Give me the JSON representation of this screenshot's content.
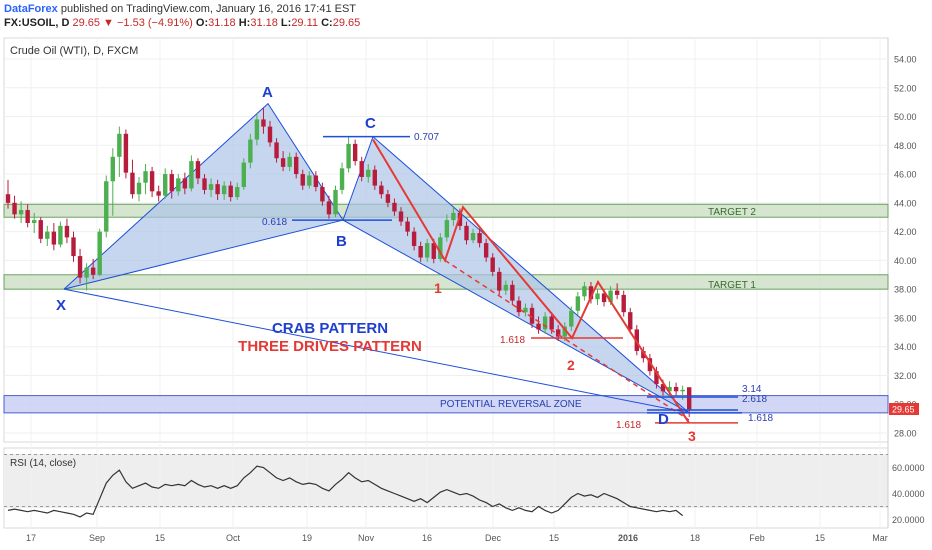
{
  "header": {
    "publisher": "DataForex",
    "published_text": "published on TradingView.com, January 16, 2016 17:41 EST",
    "symbol": "FX:USOIL, D",
    "last": "29.65",
    "change": "▼ −1.53 (−4.91%)",
    "o_label": "O:",
    "o": "31.18",
    "h_label": "H:",
    "h": "31.18",
    "l_label": "L:",
    "l": "29.11",
    "c_label": "C:",
    "c": "29.65"
  },
  "chart_title": "Crude Oil (WTI), D, FXCM",
  "price_labels": [
    "54.00",
    "52.00",
    "50.00",
    "48.00",
    "46.00",
    "44.00",
    "42.00",
    "40.00",
    "38.00",
    "36.00",
    "34.00",
    "32.00",
    "30.00",
    "28.00"
  ],
  "price_ticks": [
    54,
    52,
    50,
    48,
    46,
    44,
    42,
    40,
    38,
    36,
    34,
    32,
    30,
    28
  ],
  "last_price_tag": "29.65",
  "rsi_title": "RSI (14, close)",
  "rsi_labels": [
    "60.0000",
    "40.0000",
    "20.0000"
  ],
  "rsi_ticks": [
    60,
    40,
    20
  ],
  "time_labels": [
    "17",
    "Sep",
    "15",
    "Oct",
    "19",
    "Nov",
    "16",
    "Dec",
    "15",
    "2016",
    "18",
    "Feb",
    "15",
    "Mar"
  ],
  "pattern_text": {
    "crab": "CRAB PATTERN",
    "three_drives": "THREE DRIVES PATTERN",
    "prz": "POTENTIAL REVERSAL ZONE",
    "target1": "TARGET 1",
    "target2": "TARGET 2",
    "fib_0707": "0.707",
    "fib_0618": "0.618",
    "fib_1618_a": "1.618",
    "fib_1618_b": "1.618",
    "fib_1618_c": "1.618",
    "fib_314": "3.14",
    "fib_2618": "2.618",
    "pt_x": "X",
    "pt_a": "A",
    "pt_b": "B",
    "pt_c": "C",
    "pt_d": "D",
    "drive_1": "1",
    "drive_2": "2",
    "drive_3": "3"
  },
  "colors": {
    "bull": "#4caf50",
    "bear": "#b71c3c",
    "pattern_blue": "#1e4fd8",
    "pattern_fill": "#aec4e8",
    "drives_red": "#e53935",
    "target_fill": "#c8dcc0",
    "prz_fill": "#c5cdf2",
    "rsi_line": "#333333"
  },
  "chart_data": {
    "type": "candlestick",
    "title": "Crude Oil (WTI), D, FXCM",
    "ylim": [
      27,
      55
    ],
    "y_ticks": [
      54,
      52,
      50,
      48,
      46,
      44,
      42,
      40,
      38,
      36,
      34,
      32,
      30,
      28
    ],
    "candles": [
      {
        "o": 44.6,
        "h": 45.6,
        "l": 43.6,
        "c": 44.0
      },
      {
        "o": 44.0,
        "h": 44.5,
        "l": 42.9,
        "c": 43.2
      },
      {
        "o": 43.2,
        "h": 44.1,
        "l": 42.6,
        "c": 43.5
      },
      {
        "o": 43.5,
        "h": 43.9,
        "l": 42.3,
        "c": 42.6
      },
      {
        "o": 42.6,
        "h": 43.3,
        "l": 41.9,
        "c": 42.8
      },
      {
        "o": 42.8,
        "h": 43.0,
        "l": 41.2,
        "c": 41.5
      },
      {
        "o": 41.5,
        "h": 42.4,
        "l": 41.0,
        "c": 42.0
      },
      {
        "o": 42.0,
        "h": 42.6,
        "l": 40.7,
        "c": 41.1
      },
      {
        "o": 41.1,
        "h": 42.7,
        "l": 40.9,
        "c": 42.4
      },
      {
        "o": 42.4,
        "h": 42.9,
        "l": 41.2,
        "c": 41.6
      },
      {
        "o": 41.6,
        "h": 42.0,
        "l": 39.9,
        "c": 40.3
      },
      {
        "o": 40.3,
        "h": 40.8,
        "l": 38.4,
        "c": 38.8
      },
      {
        "o": 38.8,
        "h": 39.8,
        "l": 37.9,
        "c": 39.5
      },
      {
        "o": 39.5,
        "h": 40.1,
        "l": 38.7,
        "c": 39.0
      },
      {
        "o": 39.0,
        "h": 42.2,
        "l": 38.9,
        "c": 42.0
      },
      {
        "o": 42.0,
        "h": 45.9,
        "l": 41.6,
        "c": 45.5
      },
      {
        "o": 45.5,
        "h": 47.8,
        "l": 43.1,
        "c": 47.2
      },
      {
        "o": 47.2,
        "h": 49.3,
        "l": 45.8,
        "c": 48.8
      },
      {
        "o": 48.8,
        "h": 49.1,
        "l": 45.7,
        "c": 46.1
      },
      {
        "o": 46.1,
        "h": 47.0,
        "l": 44.3,
        "c": 44.6
      },
      {
        "o": 44.6,
        "h": 45.8,
        "l": 44.1,
        "c": 45.4
      },
      {
        "o": 45.4,
        "h": 46.7,
        "l": 44.6,
        "c": 46.2
      },
      {
        "o": 46.2,
        "h": 46.5,
        "l": 44.4,
        "c": 44.8
      },
      {
        "o": 44.8,
        "h": 45.2,
        "l": 44.1,
        "c": 44.5
      },
      {
        "o": 44.5,
        "h": 46.4,
        "l": 44.3,
        "c": 46.0
      },
      {
        "o": 46.0,
        "h": 46.3,
        "l": 44.3,
        "c": 44.8
      },
      {
        "o": 44.8,
        "h": 46.0,
        "l": 44.5,
        "c": 45.7
      },
      {
        "o": 45.7,
        "h": 46.1,
        "l": 44.6,
        "c": 45.0
      },
      {
        "o": 45.0,
        "h": 47.3,
        "l": 44.8,
        "c": 46.9
      },
      {
        "o": 46.9,
        "h": 47.1,
        "l": 45.3,
        "c": 45.7
      },
      {
        "o": 45.7,
        "h": 46.0,
        "l": 44.6,
        "c": 44.9
      },
      {
        "o": 44.9,
        "h": 45.7,
        "l": 44.4,
        "c": 45.3
      },
      {
        "o": 45.3,
        "h": 45.6,
        "l": 44.2,
        "c": 44.6
      },
      {
        "o": 44.6,
        "h": 45.5,
        "l": 44.2,
        "c": 45.2
      },
      {
        "o": 45.2,
        "h": 45.5,
        "l": 44.1,
        "c": 44.4
      },
      {
        "o": 44.4,
        "h": 45.4,
        "l": 44.2,
        "c": 45.1
      },
      {
        "o": 45.1,
        "h": 47.1,
        "l": 44.9,
        "c": 46.8
      },
      {
        "o": 46.8,
        "h": 48.8,
        "l": 46.4,
        "c": 48.4
      },
      {
        "o": 48.4,
        "h": 50.2,
        "l": 48.0,
        "c": 49.8
      },
      {
        "o": 49.8,
        "h": 50.6,
        "l": 48.8,
        "c": 49.3
      },
      {
        "o": 49.3,
        "h": 49.7,
        "l": 47.9,
        "c": 48.2
      },
      {
        "o": 48.2,
        "h": 48.5,
        "l": 46.8,
        "c": 47.1
      },
      {
        "o": 47.1,
        "h": 47.6,
        "l": 46.2,
        "c": 46.5
      },
      {
        "o": 46.5,
        "h": 47.5,
        "l": 46.2,
        "c": 47.2
      },
      {
        "o": 47.2,
        "h": 47.5,
        "l": 45.7,
        "c": 46.0
      },
      {
        "o": 46.0,
        "h": 46.3,
        "l": 44.9,
        "c": 45.2
      },
      {
        "o": 45.2,
        "h": 46.2,
        "l": 45.0,
        "c": 45.9
      },
      {
        "o": 45.9,
        "h": 46.2,
        "l": 44.8,
        "c": 45.1
      },
      {
        "o": 45.1,
        "h": 45.4,
        "l": 43.8,
        "c": 44.1
      },
      {
        "o": 44.1,
        "h": 44.5,
        "l": 42.9,
        "c": 43.2
      },
      {
        "o": 43.2,
        "h": 45.2,
        "l": 43.0,
        "c": 44.9
      },
      {
        "o": 44.9,
        "h": 46.8,
        "l": 44.6,
        "c": 46.4
      },
      {
        "o": 46.4,
        "h": 48.6,
        "l": 46.1,
        "c": 48.1
      },
      {
        "o": 48.1,
        "h": 48.4,
        "l": 46.6,
        "c": 46.9
      },
      {
        "o": 46.9,
        "h": 47.2,
        "l": 45.5,
        "c": 45.8
      },
      {
        "o": 45.8,
        "h": 46.7,
        "l": 45.4,
        "c": 46.3
      },
      {
        "o": 46.3,
        "h": 46.6,
        "l": 44.9,
        "c": 45.2
      },
      {
        "o": 45.2,
        "h": 45.5,
        "l": 44.3,
        "c": 44.6
      },
      {
        "o": 44.6,
        "h": 44.9,
        "l": 43.7,
        "c": 44.0
      },
      {
        "o": 44.0,
        "h": 44.3,
        "l": 43.1,
        "c": 43.4
      },
      {
        "o": 43.4,
        "h": 43.7,
        "l": 42.4,
        "c": 42.7
      },
      {
        "o": 42.7,
        "h": 43.0,
        "l": 41.7,
        "c": 42.0
      },
      {
        "o": 42.0,
        "h": 42.3,
        "l": 40.7,
        "c": 41.0
      },
      {
        "o": 41.0,
        "h": 41.3,
        "l": 39.9,
        "c": 40.2
      },
      {
        "o": 40.2,
        "h": 41.5,
        "l": 39.9,
        "c": 41.2
      },
      {
        "o": 41.2,
        "h": 41.5,
        "l": 39.8,
        "c": 40.1
      },
      {
        "o": 40.1,
        "h": 41.9,
        "l": 39.9,
        "c": 41.6
      },
      {
        "o": 41.6,
        "h": 43.2,
        "l": 41.3,
        "c": 42.8
      },
      {
        "o": 42.8,
        "h": 43.7,
        "l": 42.4,
        "c": 43.3
      },
      {
        "o": 43.3,
        "h": 43.6,
        "l": 42.1,
        "c": 42.4
      },
      {
        "o": 42.4,
        "h": 42.7,
        "l": 41.1,
        "c": 41.4
      },
      {
        "o": 41.4,
        "h": 42.2,
        "l": 41.2,
        "c": 41.9
      },
      {
        "o": 41.9,
        "h": 42.2,
        "l": 40.9,
        "c": 41.2
      },
      {
        "o": 41.2,
        "h": 41.5,
        "l": 39.9,
        "c": 40.2
      },
      {
        "o": 40.2,
        "h": 40.5,
        "l": 38.9,
        "c": 39.2
      },
      {
        "o": 39.2,
        "h": 39.5,
        "l": 37.6,
        "c": 37.9
      },
      {
        "o": 37.9,
        "h": 38.6,
        "l": 37.6,
        "c": 38.3
      },
      {
        "o": 38.3,
        "h": 38.6,
        "l": 36.9,
        "c": 37.2
      },
      {
        "o": 37.2,
        "h": 37.5,
        "l": 36.1,
        "c": 36.4
      },
      {
        "o": 36.4,
        "h": 37.0,
        "l": 36.1,
        "c": 36.7
      },
      {
        "o": 36.7,
        "h": 37.0,
        "l": 35.3,
        "c": 35.6
      },
      {
        "o": 35.6,
        "h": 36.1,
        "l": 34.9,
        "c": 35.2
      },
      {
        "o": 35.2,
        "h": 36.4,
        "l": 34.9,
        "c": 36.1
      },
      {
        "o": 36.1,
        "h": 36.4,
        "l": 34.9,
        "c": 35.2
      },
      {
        "o": 35.2,
        "h": 35.5,
        "l": 34.4,
        "c": 34.7
      },
      {
        "o": 34.7,
        "h": 35.7,
        "l": 34.4,
        "c": 35.4
      },
      {
        "o": 35.4,
        "h": 36.8,
        "l": 35.1,
        "c": 36.5
      },
      {
        "o": 36.5,
        "h": 37.8,
        "l": 36.2,
        "c": 37.5
      },
      {
        "o": 37.5,
        "h": 38.5,
        "l": 37.2,
        "c": 38.2
      },
      {
        "o": 38.2,
        "h": 38.5,
        "l": 37.0,
        "c": 37.3
      },
      {
        "o": 37.3,
        "h": 38.0,
        "l": 36.9,
        "c": 37.7
      },
      {
        "o": 37.7,
        "h": 38.0,
        "l": 36.8,
        "c": 37.1
      },
      {
        "o": 37.1,
        "h": 38.2,
        "l": 36.9,
        "c": 37.9
      },
      {
        "o": 37.9,
        "h": 38.4,
        "l": 37.3,
        "c": 37.6
      },
      {
        "o": 37.6,
        "h": 37.9,
        "l": 36.1,
        "c": 36.4
      },
      {
        "o": 36.4,
        "h": 36.7,
        "l": 34.9,
        "c": 35.2
      },
      {
        "o": 35.2,
        "h": 35.5,
        "l": 33.4,
        "c": 33.7
      },
      {
        "o": 33.7,
        "h": 34.0,
        "l": 32.9,
        "c": 33.2
      },
      {
        "o": 33.2,
        "h": 33.5,
        "l": 32.0,
        "c": 32.3
      },
      {
        "o": 32.3,
        "h": 32.6,
        "l": 31.1,
        "c": 31.4
      },
      {
        "o": 31.4,
        "h": 31.7,
        "l": 30.6,
        "c": 30.9
      },
      {
        "o": 30.9,
        "h": 31.6,
        "l": 30.5,
        "c": 31.2
      },
      {
        "o": 31.2,
        "h": 31.5,
        "l": 30.6,
        "c": 30.9
      },
      {
        "o": 30.9,
        "h": 31.3,
        "l": 30.3,
        "c": 31.0
      },
      {
        "o": 31.18,
        "h": 31.18,
        "l": 29.11,
        "c": 29.65
      }
    ],
    "rsi": {
      "name": "RSI (14, close)",
      "ylim": [
        15,
        72
      ],
      "bands": [
        70,
        30
      ],
      "values": [
        27,
        28,
        27,
        26,
        27,
        26,
        25,
        27,
        26,
        25,
        24,
        22,
        25,
        24,
        36,
        48,
        54,
        58,
        49,
        44,
        46,
        48,
        45,
        44,
        47,
        46,
        47,
        46,
        50,
        47,
        45,
        46,
        44,
        46,
        44,
        46,
        52,
        56,
        61,
        60,
        56,
        52,
        50,
        52,
        49,
        47,
        48,
        47,
        44,
        42,
        47,
        51,
        56,
        52,
        49,
        50,
        47,
        44,
        42,
        40,
        38,
        36,
        34,
        36,
        33,
        37,
        41,
        43,
        41,
        39,
        40,
        38,
        35,
        33,
        30,
        32,
        29,
        27,
        29,
        27,
        26,
        30,
        27,
        25,
        27,
        32,
        37,
        40,
        38,
        39,
        37,
        40,
        38,
        36,
        33,
        30,
        29,
        28,
        27,
        26,
        27,
        26,
        27,
        23
      ]
    },
    "time_axis": [
      "17",
      "Sep",
      "15",
      "Oct",
      "19",
      "Nov",
      "16",
      "Dec",
      "15",
      "2016",
      "18",
      "Feb",
      "15",
      "Mar"
    ],
    "crab_pattern": {
      "X": 38.0,
      "A": 50.9,
      "B": 42.8,
      "C": 48.6,
      "D": 29.4,
      "fibs": {
        "0.707": 48.6,
        "0.618": 42.8,
        "1.618": 28.7,
        "2.618": 29.6,
        "3.14": 30.5
      }
    },
    "three_drives": {
      "drive_1": 40.0,
      "drive_2": 34.6,
      "drive_3": 28.7
    },
    "zones": {
      "target_1": [
        38.0,
        39.0
      ],
      "target_2": [
        43.0,
        43.9
      ],
      "potential_reversal_zone": [
        29.4,
        30.6
      ]
    }
  }
}
